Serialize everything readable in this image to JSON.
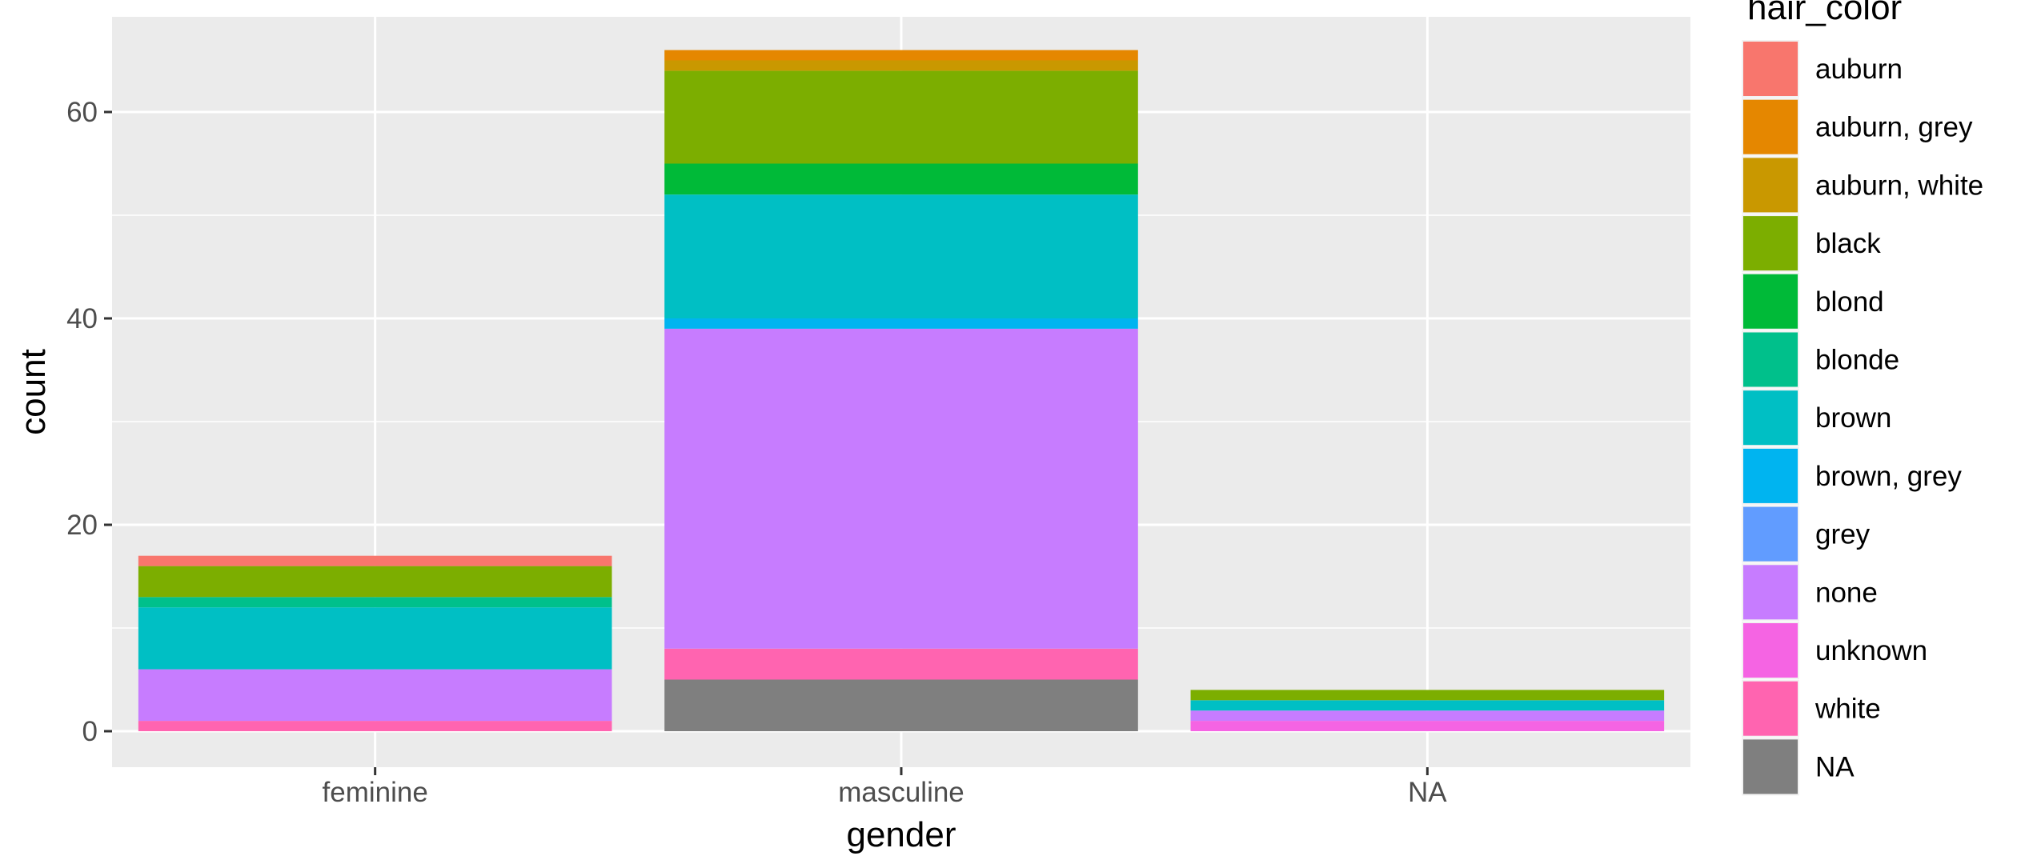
{
  "chart_data": {
    "type": "bar",
    "stacked": true,
    "xlabel": "gender",
    "ylabel": "count",
    "categories": [
      "feminine",
      "masculine",
      "NA"
    ],
    "ylim": [
      0,
      66
    ],
    "yticks": [
      0,
      20,
      40,
      60
    ],
    "grid": true,
    "legend_title": "hair_color",
    "legend_position": "right",
    "series": [
      {
        "name": "auburn",
        "color": "#F8766D",
        "values": [
          1,
          0,
          0
        ]
      },
      {
        "name": "auburn, grey",
        "color": "#E58700",
        "values": [
          0,
          1,
          0
        ]
      },
      {
        "name": "auburn, white",
        "color": "#C99800",
        "values": [
          0,
          1,
          0
        ]
      },
      {
        "name": "black",
        "color": "#7CAE00",
        "values": [
          3,
          9,
          1
        ]
      },
      {
        "name": "blond",
        "color": "#00BA38",
        "values": [
          0,
          3,
          0
        ]
      },
      {
        "name": "blonde",
        "color": "#00C08B",
        "values": [
          1,
          0,
          0
        ]
      },
      {
        "name": "brown",
        "color": "#00BFC4",
        "values": [
          6,
          12,
          1
        ]
      },
      {
        "name": "brown, grey",
        "color": "#00B4F0",
        "values": [
          0,
          1,
          0
        ]
      },
      {
        "name": "grey",
        "color": "#619CFF",
        "values": [
          0,
          0,
          0
        ]
      },
      {
        "name": "none",
        "color": "#C77CFF",
        "values": [
          5,
          31,
          1
        ]
      },
      {
        "name": "unknown",
        "color": "#F564E3",
        "values": [
          0,
          0,
          1
        ]
      },
      {
        "name": "white",
        "color": "#FF64B0",
        "values": [
          1,
          3,
          0
        ]
      },
      {
        "name": "NA",
        "color": "#7F7F7F",
        "values": [
          0,
          5,
          0
        ]
      }
    ]
  }
}
